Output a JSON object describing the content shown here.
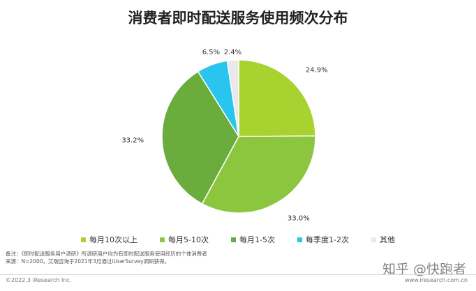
{
  "chart_data": {
    "type": "pie",
    "title": "消费者即时配送服务使用频次分布",
    "slices": [
      {
        "label": "每月10次以上",
        "value": 24.9,
        "display": "24.9%",
        "color": "#a8d22f"
      },
      {
        "label": "每月5-10次",
        "value": 33.0,
        "display": "33.0%",
        "color": "#8cc63f"
      },
      {
        "label": "每月1-5次",
        "value": 33.2,
        "display": "33.2%",
        "color": "#6aad3c"
      },
      {
        "label": "每季度1-2次",
        "value": 6.5,
        "display": "6.5%",
        "color": "#29c5ef"
      },
      {
        "label": "其他",
        "value": 2.4,
        "display": "2.4%",
        "color": "#e9e9e9"
      }
    ],
    "legend_position": "bottom"
  },
  "notes": {
    "line1": "备注：《即时配送服务用户调研》所调研用户均为有即时配送服务使用经历的个体消费者",
    "line2": "来源：N=2000，艾瑞咨询于2021年3月通过iUserSurvey调研获得。"
  },
  "footer": {
    "copyright": "©2022.3 iResearch Inc.",
    "website": "www.iresearch.com.cn"
  },
  "watermark": "知乎 @快跑者"
}
